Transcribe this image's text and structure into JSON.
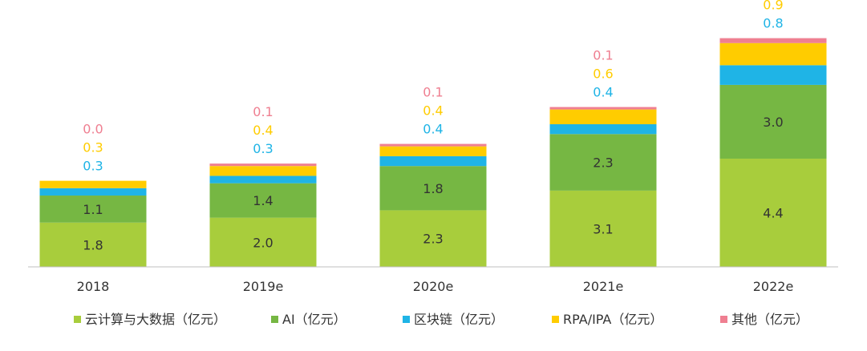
{
  "chart_data": {
    "type": "bar",
    "stacked": true,
    "categories": [
      "2018",
      "2019e",
      "2020e",
      "2021e",
      "2022e"
    ],
    "series": [
      {
        "name": "云计算与大数据（亿元）",
        "values": [
          1.8,
          2.0,
          2.3,
          3.1,
          4.4
        ],
        "color": "#a8cd3c",
        "label_position": "inside"
      },
      {
        "name": "AI（亿元）",
        "values": [
          1.1,
          1.4,
          1.8,
          2.3,
          3.0
        ],
        "color": "#76b743",
        "label_position": "inside"
      },
      {
        "name": "区块链（亿元）",
        "values": [
          0.3,
          0.3,
          0.4,
          0.4,
          0.8
        ],
        "color": "#1fb4e6",
        "label_position": "above"
      },
      {
        "name": "RPA/IPA（亿元）",
        "values": [
          0.3,
          0.4,
          0.4,
          0.6,
          0.9
        ],
        "color": "#ffcc00",
        "label_position": "above"
      },
      {
        "name": "其他（亿元）",
        "values": [
          0.0,
          0.1,
          0.1,
          0.1,
          0.2
        ],
        "color": "#ef7f91",
        "label_position": "above"
      }
    ],
    "title": "",
    "xlabel": "",
    "ylabel": "",
    "ylim": [
      0,
      10.2
    ],
    "grid": false,
    "legend_placement": "bottom"
  }
}
